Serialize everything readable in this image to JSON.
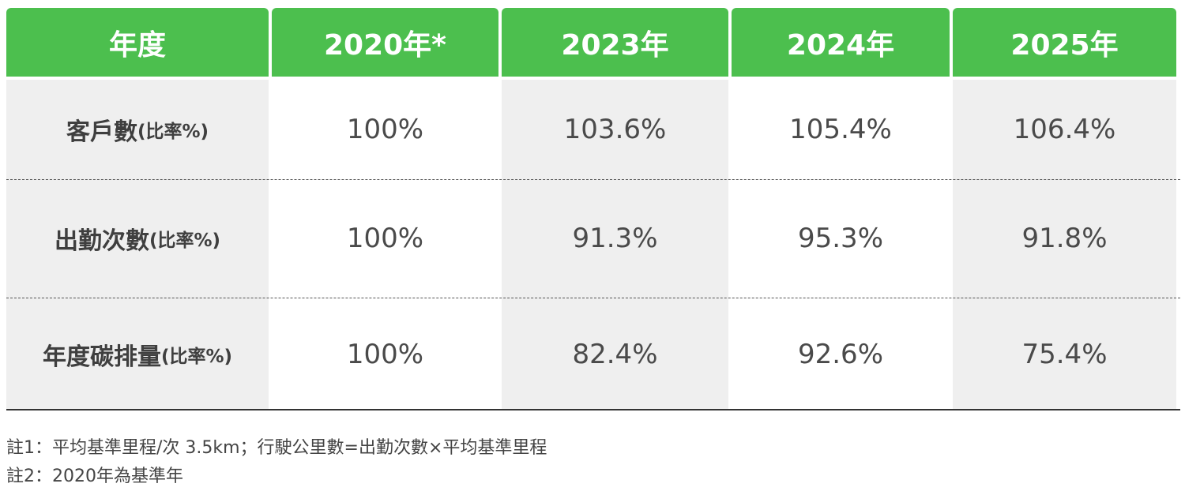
{
  "table": {
    "headers": [
      "年度",
      "2020年*",
      "2023年",
      "2024年",
      "2025年"
    ],
    "rows": [
      {
        "label_main": "客戶數",
        "label_unit": "(比率%)",
        "values": [
          "100%",
          "103.6%",
          "105.4%",
          "106.4%"
        ]
      },
      {
        "label_main": "出勤次數",
        "label_unit": "(比率%)",
        "values": [
          "100%",
          "91.3%",
          "95.3%",
          "91.8%"
        ]
      },
      {
        "label_main": "年度碳排量",
        "label_unit": "(比率%)",
        "values": [
          "100%",
          "82.4%",
          "92.6%",
          "75.4%"
        ]
      }
    ]
  },
  "notes": [
    "註1：平均基準里程/次 3.5km；行駛公里數=出勤次數×平均基準里程",
    "註2：2020年為基準年"
  ],
  "colors": {
    "header_green": "#4cbf4e",
    "cell_grey": "#efefef"
  }
}
